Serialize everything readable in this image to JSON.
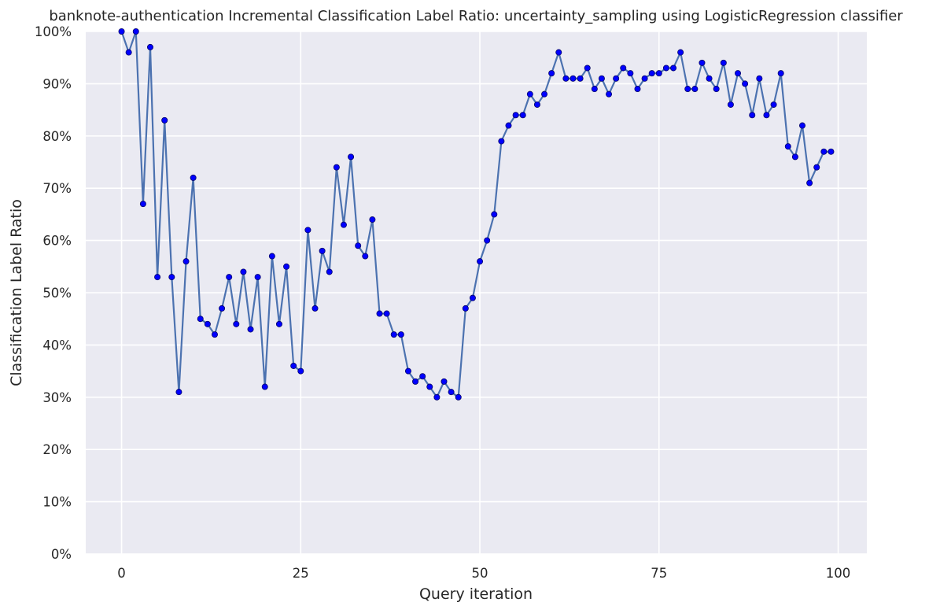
{
  "chart_data": {
    "type": "line",
    "title": "banknote-authentication Incremental Classification Label Ratio: uncertainty_sampling using LogisticRegression classifier",
    "xlabel": "Query iteration",
    "ylabel": "Classification Label Ratio",
    "xlim": [
      -5,
      104
    ],
    "ylim": [
      0,
      100
    ],
    "x_ticks": [
      0,
      25,
      50,
      75,
      100
    ],
    "x_tick_labels": [
      "0",
      "25",
      "50",
      "75",
      "100"
    ],
    "y_ticks": [
      0,
      10,
      20,
      30,
      40,
      50,
      60,
      70,
      80,
      90,
      100
    ],
    "y_tick_labels": [
      "0%",
      "10%",
      "20%",
      "30%",
      "40%",
      "50%",
      "60%",
      "70%",
      "80%",
      "90%",
      "100%"
    ],
    "grid": true,
    "background": "#eaeaf2",
    "grid_color": "#ffffff",
    "line_color": "#4c72b0",
    "marker_color": "#0000ff",
    "series": [
      {
        "x": [
          0,
          1,
          2,
          3,
          4,
          5,
          6,
          7,
          8,
          9,
          10,
          11,
          12,
          13,
          14,
          15,
          16,
          17,
          18,
          19,
          20,
          21,
          22,
          23,
          24,
          25,
          26,
          27,
          28,
          29,
          30,
          31,
          32,
          33,
          34,
          35,
          36,
          37,
          38,
          39,
          40,
          41,
          42,
          43,
          44,
          45,
          46,
          47,
          48,
          49,
          50,
          51,
          52,
          53,
          54,
          55,
          56,
          57,
          58,
          59,
          60,
          61,
          62,
          63,
          64,
          65,
          66,
          67,
          68,
          69,
          70,
          71,
          72,
          73,
          74,
          75,
          76,
          77,
          78,
          79,
          80,
          81,
          82,
          83,
          84,
          85,
          86,
          87,
          88,
          89,
          90,
          91,
          92,
          93,
          94,
          95,
          96,
          97,
          98,
          99
        ],
        "values": [
          100,
          96,
          100,
          67,
          97,
          53,
          83,
          53,
          31,
          56,
          72,
          45,
          44,
          42,
          47,
          53,
          44,
          54,
          43,
          53,
          32,
          57,
          44,
          55,
          36,
          35,
          62,
          47,
          58,
          54,
          74,
          63,
          76,
          59,
          57,
          64,
          46,
          46,
          42,
          42,
          35,
          33,
          34,
          32,
          30,
          33,
          31,
          30,
          47,
          49,
          56,
          60,
          65,
          79,
          82,
          84,
          84,
          88,
          86,
          88,
          92,
          96,
          91,
          91,
          91,
          93,
          89,
          91,
          88,
          91,
          93,
          92,
          89,
          91,
          92,
          92,
          93,
          93,
          96,
          89,
          89,
          94,
          91,
          89,
          94,
          86,
          92,
          90,
          84,
          91,
          84,
          86,
          92,
          78,
          76,
          82,
          71,
          74,
          77,
          77
        ]
      }
    ]
  }
}
